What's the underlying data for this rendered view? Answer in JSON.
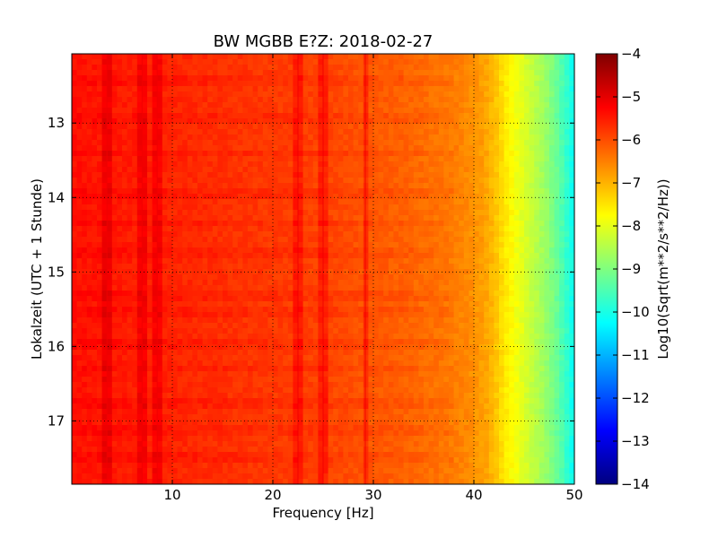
{
  "chart_data": {
    "type": "heatmap",
    "title": "BW MGBB E?Z: 2018-02-27",
    "xlabel": "Frequency [Hz]",
    "ylabel": "Lokalzeit (UTC + 1 Stunde)",
    "xlim": [
      0,
      50
    ],
    "ylim": [
      12.07,
      17.85
    ],
    "y_inverted": true,
    "x_ticks": [
      10,
      20,
      30,
      40,
      50
    ],
    "y_ticks": [
      13,
      14,
      15,
      16,
      17
    ],
    "grid": true,
    "colormap": "jet",
    "colorbar": {
      "label": "Log10(Sqrt(m**2/s**2/Hz))",
      "range": [
        -14,
        -4
      ],
      "ticks": [
        -4,
        -5,
        -6,
        -7,
        -8,
        -9,
        -10,
        -11,
        -12,
        -13,
        -14
      ]
    },
    "spectrum_profile": {
      "frequency_hz": [
        0,
        5,
        10,
        15,
        20,
        25,
        30,
        33,
        35,
        37,
        39,
        41,
        42,
        43,
        44,
        45,
        46,
        47,
        48,
        49,
        50
      ],
      "log10_amplitude": [
        -5.4,
        -5.5,
        -5.6,
        -5.7,
        -5.8,
        -5.9,
        -6.1,
        -6.2,
        -6.3,
        -6.4,
        -6.55,
        -6.8,
        -7.1,
        -7.5,
        -7.8,
        -8.1,
        -8.4,
        -8.7,
        -9.1,
        -9.6,
        -10.2
      ]
    },
    "spectral_lines_hz": [
      3.5,
      7.0,
      8.5,
      22.5,
      25.0,
      29.2
    ],
    "time_bands_hours": [
      12.45,
      12.95,
      13.4,
      13.95,
      14.35,
      14.75,
      15.3,
      15.55,
      15.95,
      16.3,
      16.75,
      17.15,
      17.5
    ]
  }
}
